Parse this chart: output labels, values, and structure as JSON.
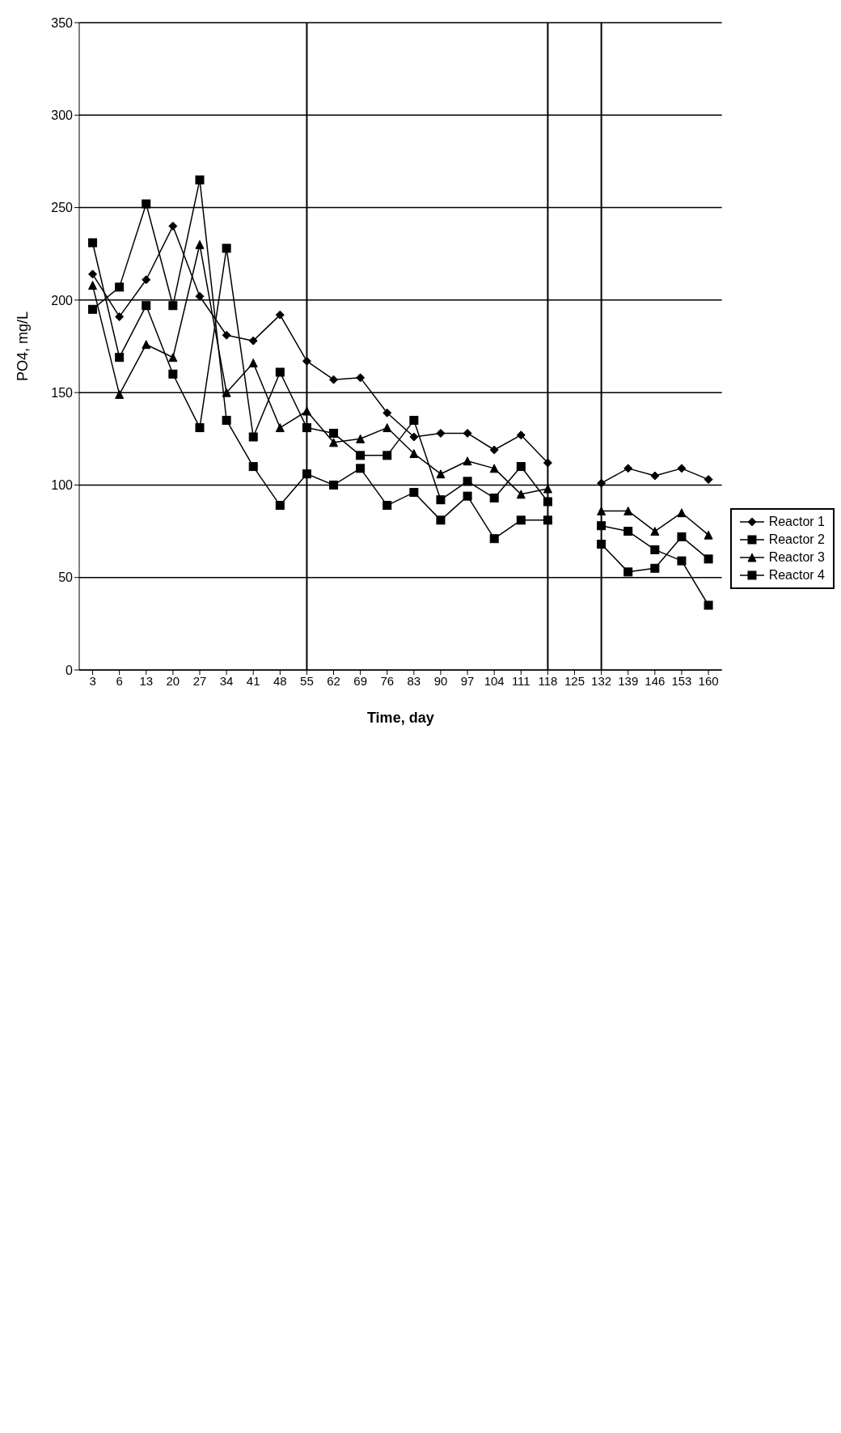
{
  "chart_data": {
    "type": "line",
    "xlabel": "Time, day",
    "ylabel": "PO4, mg/L",
    "categories": [
      "3",
      "6",
      "13",
      "20",
      "27",
      "34",
      "41",
      "48",
      "55",
      "62",
      "69",
      "76",
      "83",
      "90",
      "97",
      "104",
      "111",
      "118",
      "125",
      "132",
      "139",
      "146",
      "153",
      "160"
    ],
    "series": [
      {
        "name": "Reactor 1",
        "color": "#000000",
        "marker": "diamond",
        "values": [
          214,
          191,
          211,
          240,
          202,
          181,
          178,
          192,
          167,
          157,
          158,
          139,
          126,
          128,
          128,
          119,
          127,
          112,
          null,
          101,
          109,
          105,
          109,
          103
        ]
      },
      {
        "name": "Reactor 2",
        "color": "#000000",
        "marker": "square",
        "values": [
          231,
          169,
          197,
          160,
          131,
          228,
          126,
          161,
          131,
          128,
          116,
          116,
          135,
          92,
          102,
          93,
          110,
          91,
          null,
          78,
          75,
          65,
          59,
          35
        ]
      },
      {
        "name": "Reactor 3",
        "color": "#000000",
        "marker": "triangle",
        "values": [
          208,
          149,
          176,
          169,
          230,
          150,
          166,
          131,
          140,
          123,
          125,
          131,
          117,
          106,
          113,
          109,
          95,
          98,
          null,
          86,
          86,
          75,
          85,
          73
        ]
      },
      {
        "name": "Reactor 4",
        "color": "#000000",
        "marker": "square",
        "values": [
          195,
          207,
          252,
          197,
          265,
          135,
          110,
          89,
          106,
          100,
          109,
          89,
          96,
          81,
          94,
          71,
          81,
          81,
          null,
          68,
          53,
          55,
          72,
          60
        ]
      }
    ],
    "ylim": [
      0,
      350
    ],
    "yticks": [
      0,
      50,
      100,
      150,
      200,
      250,
      300,
      350
    ],
    "grid": "y",
    "legend": "right",
    "ref_lines": [
      {
        "axis": "x",
        "value": "55"
      },
      {
        "axis": "x",
        "value": "118"
      },
      {
        "axis": "x",
        "value": "132"
      }
    ]
  }
}
